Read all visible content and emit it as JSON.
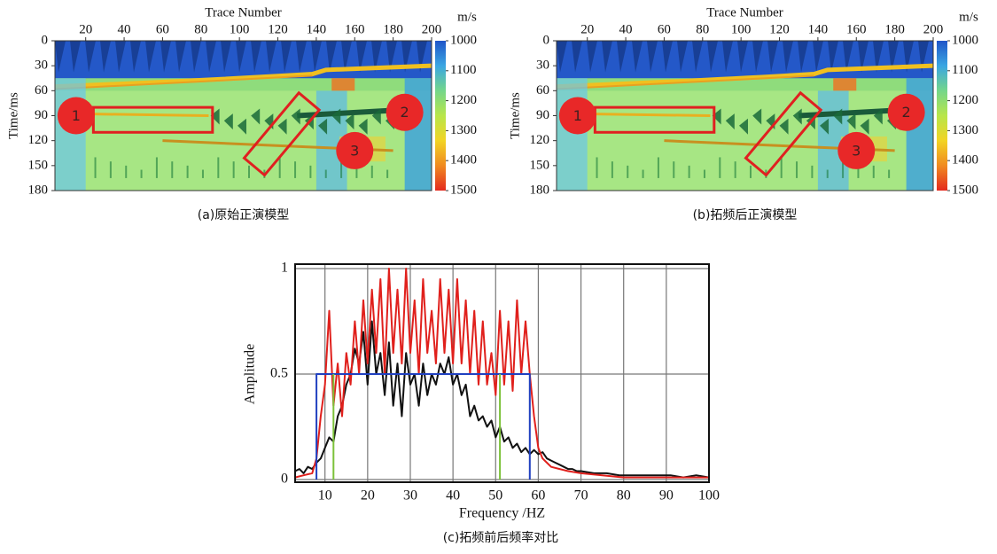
{
  "chart_data": [
    {
      "type": "image",
      "xlabel": "Trace Number",
      "ylabel": "Time/ms",
      "xlim": [
        4,
        200
      ],
      "xticks": [
        20,
        40,
        60,
        80,
        100,
        120,
        140,
        160,
        180,
        200
      ],
      "ylim": [
        0,
        180
      ],
      "yticks": [
        0,
        30,
        60,
        90,
        120,
        150,
        180
      ],
      "colorbar": {
        "label": "m/s",
        "lim": [
          1000,
          1500
        ],
        "ticks": [
          1000,
          1100,
          1200,
          1300,
          1400,
          1500
        ],
        "colors": [
          "#1f55c8",
          "#3aa6e2",
          "#74d68a",
          "#b8e64a",
          "#f2d424",
          "#f08a20",
          "#e42a1e"
        ]
      },
      "annotations": [
        "1",
        "2",
        "3"
      ],
      "caption": "(a)原始正演模型"
    },
    {
      "type": "image",
      "xlabel": "Trace Number",
      "ylabel": "Time/ms",
      "xlim": [
        4,
        200
      ],
      "xticks": [
        20,
        40,
        60,
        80,
        100,
        120,
        140,
        160,
        180,
        200
      ],
      "ylim": [
        0,
        180
      ],
      "yticks": [
        0,
        30,
        60,
        90,
        120,
        150,
        180
      ],
      "colorbar": {
        "label": "m/s",
        "lim": [
          1000,
          1500
        ],
        "ticks": [
          1000,
          1100,
          1200,
          1300,
          1400,
          1500
        ],
        "colors": [
          "#1f55c8",
          "#3aa6e2",
          "#74d68a",
          "#b8e64a",
          "#f2d424",
          "#f08a20",
          "#e42a1e"
        ]
      },
      "annotations": [
        "1",
        "2",
        "3"
      ],
      "caption": "(b)拓频后正演模型"
    },
    {
      "type": "line",
      "xlabel": "Frequency /HZ",
      "ylabel": "Amplitude",
      "xlim": [
        3,
        100
      ],
      "xticks": [
        10,
        20,
        30,
        40,
        50,
        60,
        70,
        80,
        90,
        100
      ],
      "ylim": [
        0,
        1
      ],
      "yticks": [
        0,
        0.5,
        1
      ],
      "grid": true,
      "caption": "(c)拓频前后频率对比",
      "series": [
        {
          "color": "#111111",
          "x": [
            3,
            4,
            5,
            6,
            7,
            8,
            9,
            10,
            11,
            12,
            13,
            14,
            15,
            16,
            17,
            18,
            19,
            20,
            21,
            22,
            23,
            24,
            25,
            26,
            27,
            28,
            29,
            30,
            31,
            32,
            33,
            34,
            35,
            36,
            37,
            38,
            39,
            40,
            41,
            42,
            43,
            44,
            45,
            46,
            47,
            48,
            49,
            50,
            51,
            52,
            53,
            54,
            55,
            56,
            57,
            58,
            59,
            60,
            61,
            62,
            63,
            64,
            65,
            66,
            67,
            68,
            69,
            70,
            73,
            76,
            79,
            82,
            85,
            88,
            91,
            94,
            97,
            100
          ],
          "values": [
            0.04,
            0.05,
            0.03,
            0.06,
            0.05,
            0.08,
            0.1,
            0.15,
            0.2,
            0.18,
            0.3,
            0.35,
            0.45,
            0.5,
            0.62,
            0.55,
            0.7,
            0.45,
            0.75,
            0.5,
            0.6,
            0.4,
            0.65,
            0.35,
            0.55,
            0.3,
            0.6,
            0.45,
            0.5,
            0.35,
            0.55,
            0.4,
            0.5,
            0.45,
            0.55,
            0.5,
            0.58,
            0.45,
            0.5,
            0.4,
            0.45,
            0.3,
            0.35,
            0.28,
            0.3,
            0.25,
            0.28,
            0.2,
            0.25,
            0.18,
            0.2,
            0.15,
            0.17,
            0.13,
            0.15,
            0.12,
            0.14,
            0.12,
            0.13,
            0.1,
            0.09,
            0.08,
            0.07,
            0.06,
            0.05,
            0.05,
            0.04,
            0.04,
            0.03,
            0.03,
            0.02,
            0.02,
            0.02,
            0.02,
            0.02,
            0.01,
            0.02,
            0.01
          ]
        },
        {
          "color": "#e0201c",
          "x": [
            3,
            5,
            7,
            8,
            9,
            10,
            11,
            12,
            13,
            14,
            15,
            16,
            17,
            18,
            19,
            20,
            21,
            22,
            23,
            24,
            25,
            26,
            27,
            28,
            29,
            30,
            31,
            32,
            33,
            34,
            35,
            36,
            37,
            38,
            39,
            40,
            41,
            42,
            43,
            44,
            45,
            46,
            47,
            48,
            49,
            50,
            51,
            52,
            53,
            54,
            55,
            56,
            57,
            58,
            59,
            60,
            61,
            62,
            63,
            65,
            67,
            70,
            75,
            80,
            85,
            90,
            95,
            100
          ],
          "values": [
            0.01,
            0.02,
            0.03,
            0.1,
            0.3,
            0.45,
            0.8,
            0.35,
            0.55,
            0.3,
            0.6,
            0.45,
            0.75,
            0.5,
            0.85,
            0.55,
            0.9,
            0.6,
            0.95,
            0.5,
            1,
            0.6,
            0.9,
            0.55,
            1,
            0.6,
            0.85,
            0.5,
            0.95,
            0.6,
            0.8,
            0.55,
            0.95,
            0.6,
            0.9,
            0.55,
            0.95,
            0.55,
            0.85,
            0.5,
            0.8,
            0.45,
            0.75,
            0.45,
            0.6,
            0.4,
            0.8,
            0.45,
            0.75,
            0.42,
            0.85,
            0.5,
            0.75,
            0.5,
            0.3,
            0.15,
            0.1,
            0.08,
            0.06,
            0.05,
            0.04,
            0.03,
            0.02,
            0.01,
            0.01,
            0.01,
            0.01,
            0.01
          ]
        },
        {
          "color": "#2040c0",
          "x": [
            8,
            8,
            58,
            58
          ],
          "values": [
            0,
            0.5,
            0.5,
            0
          ]
        },
        {
          "color": "#7cc23a",
          "x": [
            12,
            12,
            12,
            51,
            51
          ],
          "values": [
            0,
            0.5,
            null,
            0,
            0.5
          ]
        }
      ]
    }
  ]
}
